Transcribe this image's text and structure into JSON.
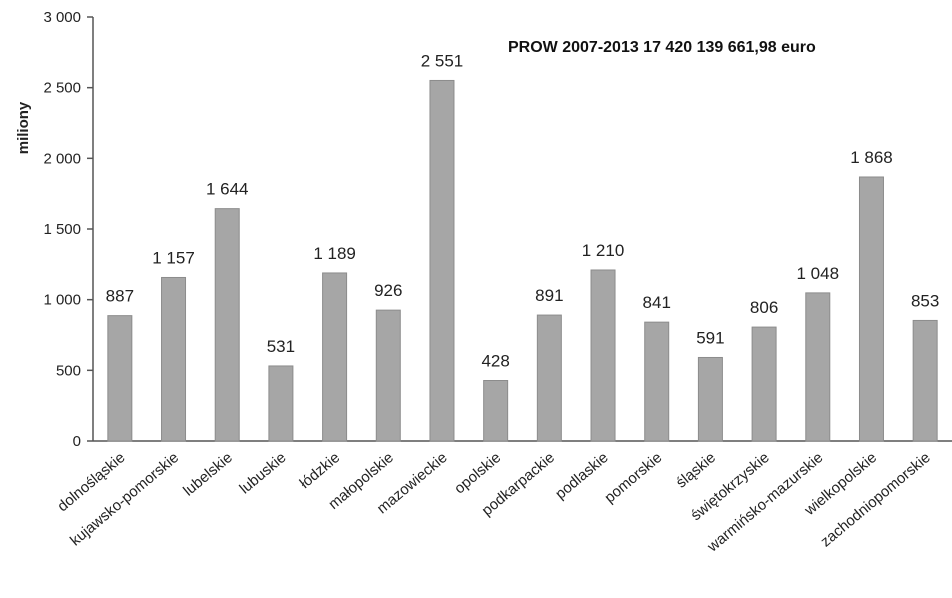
{
  "chart_data": {
    "type": "bar",
    "title": "PROW 2007-2013   17 420 139 661,98 euro",
    "ylabel": "miliony",
    "xlabel": "",
    "ylim": [
      0,
      3000
    ],
    "yticks": [
      0,
      500,
      1000,
      1500,
      2000,
      2500,
      3000
    ],
    "ytick_labels": [
      "0",
      "500",
      "1 000",
      "1 500",
      "2 000",
      "2 500",
      "3 000"
    ],
    "grid": false,
    "bar_color": "#a6a6a6",
    "categories": [
      "dolnośląskie",
      "kujawsko-pomorskie",
      "lubelskie",
      "lubuskie",
      "łódzkie",
      "małopolskie",
      "mazowieckie",
      "opolskie",
      "podkarpackie",
      "podlaskie",
      "pomorskie",
      "śląskie",
      "świętokrzyskie",
      "warmińsko-mazurskie",
      "wielkopolskie",
      "zachodniopomorskie"
    ],
    "values": [
      887,
      1157,
      1644,
      531,
      1189,
      926,
      2551,
      428,
      891,
      1210,
      841,
      591,
      806,
      1048,
      1868,
      853
    ],
    "data_labels": [
      "887",
      "1 157",
      "1 644",
      "531",
      "1 189",
      "926",
      "2 551",
      "428",
      "891",
      "1 210",
      "841",
      "591",
      "806",
      "1 048",
      "1 868",
      "853"
    ]
  }
}
